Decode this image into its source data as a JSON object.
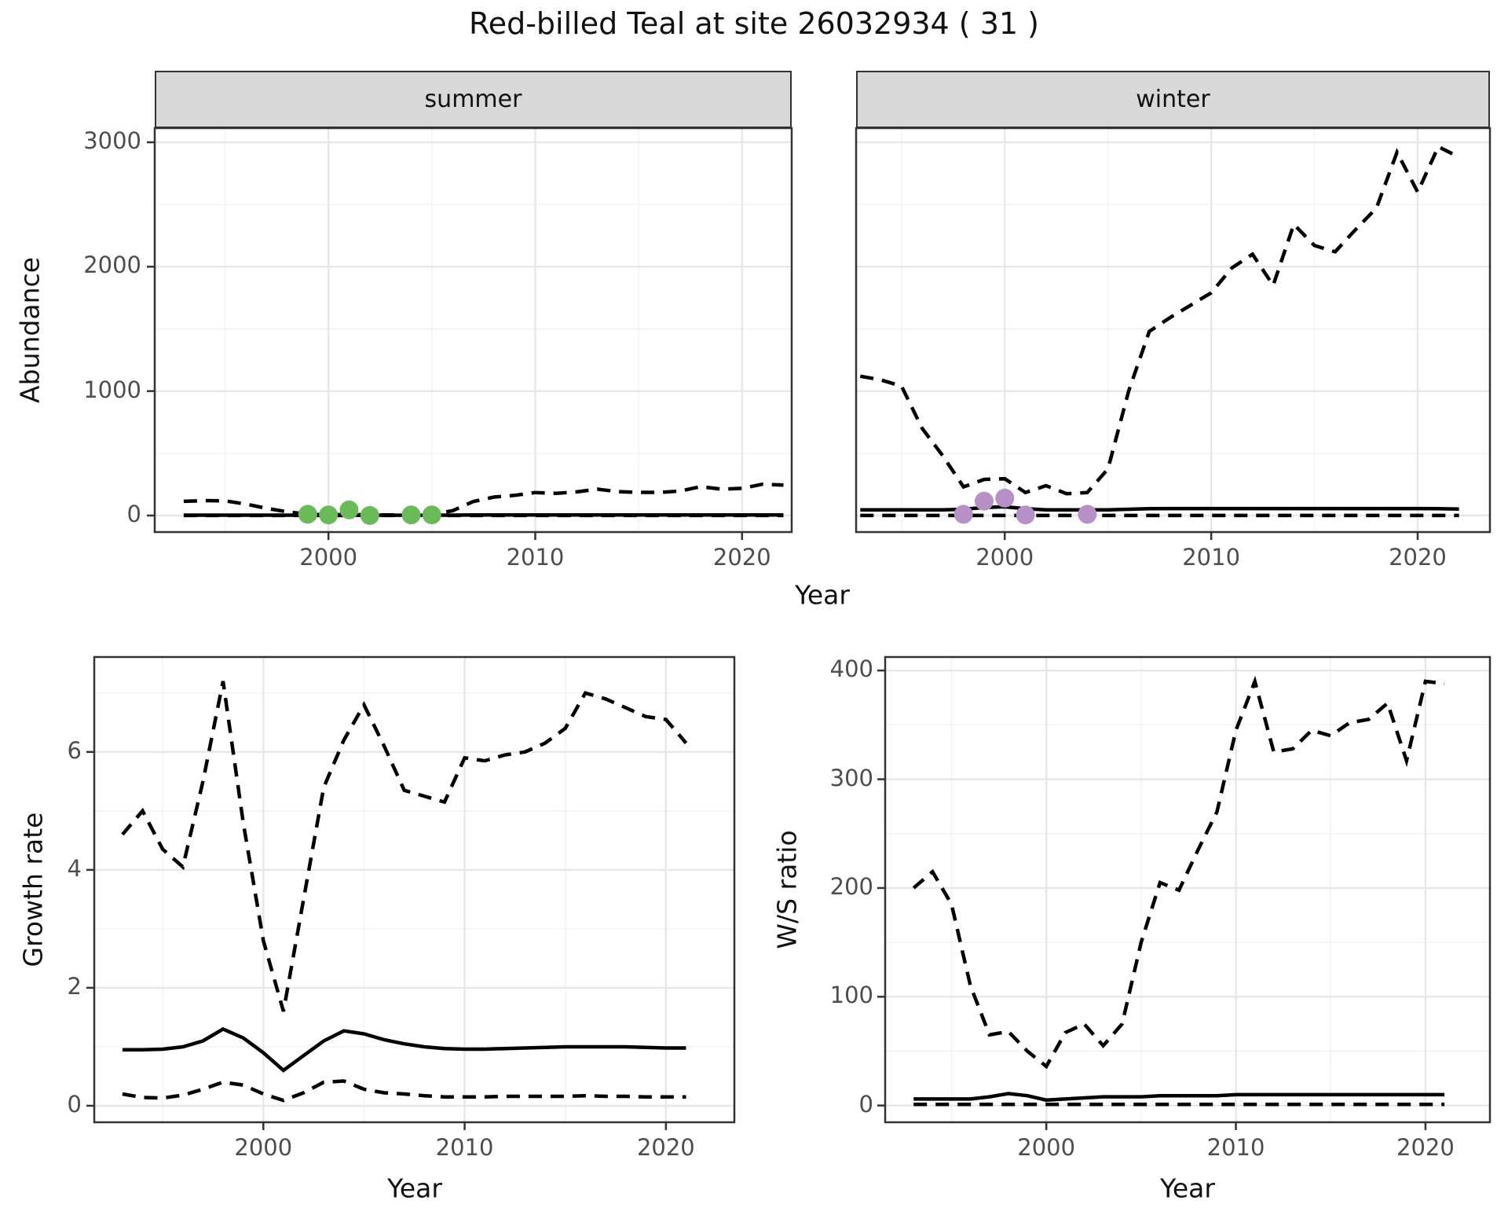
{
  "title": "Red-billed Teal at site 26032934 ( 31 )",
  "facet_labels": {
    "summer": "summer",
    "winter": "winter"
  },
  "axis_titles": {
    "abundance": "Abundance",
    "year_top": "Year",
    "growth": "Growth rate",
    "ws": "W/S ratio",
    "year_growth": "Year",
    "year_ws": "Year"
  },
  "colors": {
    "summer_dots": "#6aba5a",
    "winter_dots": "#b690c6",
    "line": "#000000",
    "grid_major": "#e7e7e7",
    "grid_minor": "#f2f2f2",
    "strip_bg": "#d9d9d9",
    "panel_border": "#333333",
    "tick_text": "#4d4d4d"
  },
  "chart_data": [
    {
      "id": "abundance-summer",
      "type": "line",
      "facet": "summer",
      "title": "Red-billed Teal at site 26032934 ( 31 )",
      "xlabel": "Year",
      "ylabel": "Abundance",
      "xlim": [
        1991.6,
        2022.4
      ],
      "ylim": [
        -133,
        3114
      ],
      "xticks": [
        2000,
        2010,
        2020
      ],
      "xminor": [
        1995,
        2005,
        2015
      ],
      "yticks": [
        0,
        1000,
        2000,
        3000
      ],
      "yminor": [
        500,
        1500,
        2500
      ],
      "x": [
        1993,
        1994,
        1995,
        1996,
        1997,
        1998,
        1999,
        2000,
        2001,
        2002,
        2003,
        2004,
        2005,
        2006,
        2007,
        2008,
        2009,
        2010,
        2011,
        2012,
        2013,
        2014,
        2015,
        2016,
        2017,
        2018,
        2019,
        2020,
        2021,
        2022
      ],
      "series": [
        {
          "name": "upper_ci",
          "style": "dashed",
          "values": [
            114,
            120,
            118,
            92,
            58,
            30,
            10,
            6,
            8,
            6,
            5,
            7,
            10,
            38,
            112,
            148,
            162,
            185,
            178,
            190,
            212,
            192,
            186,
            186,
            196,
            232,
            212,
            218,
            252,
            245
          ]
        },
        {
          "name": "lower_ci",
          "style": "dashed",
          "values": [
            0,
            0,
            0,
            0,
            0,
            0,
            0,
            0,
            0,
            0,
            0,
            0,
            0,
            0,
            0,
            0,
            0,
            0,
            0,
            0,
            0,
            0,
            0,
            0,
            0,
            0,
            0,
            0,
            0,
            0
          ]
        },
        {
          "name": "median",
          "style": "solid",
          "values": [
            3,
            3,
            3,
            3,
            3,
            3,
            2,
            2,
            2,
            2,
            2,
            2,
            2,
            3,
            4,
            5,
            5,
            5,
            5,
            5,
            5,
            5,
            5,
            5,
            5,
            5,
            5,
            5,
            5,
            5
          ]
        }
      ],
      "points": {
        "name": "observed_counts",
        "color_key": "summer_dots",
        "x": [
          1999,
          2000,
          2001,
          2002,
          2004,
          2005
        ],
        "y": [
          10,
          5,
          45,
          0,
          5,
          5
        ]
      }
    },
    {
      "id": "abundance-winter",
      "type": "line",
      "facet": "winter",
      "xlabel": "Year",
      "ylabel": "Abundance",
      "xlim": [
        1992.8,
        2023.5
      ],
      "ylim": [
        -133,
        3114
      ],
      "xticks": [
        2000,
        2010,
        2020
      ],
      "xminor": [
        1995,
        2005,
        2015
      ],
      "yticks": [
        0,
        1000,
        2000,
        3000
      ],
      "yminor": [
        500,
        1500,
        2500
      ],
      "x": [
        1993,
        1994,
        1995,
        1996,
        1997,
        1998,
        1999,
        2000,
        2001,
        2002,
        2003,
        2004,
        2005,
        2006,
        2007,
        2008,
        2009,
        2010,
        2011,
        2012,
        2013,
        2014,
        2015,
        2016,
        2017,
        2018,
        2019,
        2020,
        2021,
        2022
      ],
      "series": [
        {
          "name": "upper_ci",
          "style": "dashed",
          "values": [
            1120,
            1090,
            1040,
            700,
            480,
            230,
            290,
            295,
            185,
            240,
            175,
            185,
            375,
            1000,
            1480,
            1590,
            1690,
            1790,
            1990,
            2100,
            1850,
            2340,
            2170,
            2120,
            2300,
            2470,
            2920,
            2600,
            2965,
            2880
          ]
        },
        {
          "name": "lower_ci",
          "style": "dashed",
          "values": [
            0,
            0,
            0,
            0,
            0,
            0,
            0,
            0,
            0,
            0,
            0,
            0,
            0,
            0,
            0,
            0,
            0,
            0,
            0,
            0,
            0,
            0,
            0,
            0,
            0,
            0,
            0,
            0,
            0,
            0
          ]
        },
        {
          "name": "median",
          "style": "solid",
          "values": [
            45,
            45,
            45,
            45,
            46,
            50,
            65,
            70,
            55,
            46,
            45,
            45,
            45,
            50,
            55,
            56,
            56,
            56,
            56,
            56,
            56,
            56,
            56,
            56,
            56,
            56,
            56,
            56,
            55,
            52
          ]
        }
      ],
      "points": {
        "name": "observed_counts",
        "color_key": "winter_dots",
        "x": [
          1998,
          1999,
          2000,
          2001,
          2004
        ],
        "y": [
          10,
          115,
          140,
          5,
          10
        ]
      }
    },
    {
      "id": "growth-rate",
      "type": "line",
      "xlabel": "Year",
      "ylabel": "Growth rate",
      "xlim": [
        1991.6,
        2023.4
      ],
      "ylim": [
        -0.28,
        7.61
      ],
      "xticks": [
        2000,
        2010,
        2020
      ],
      "xminor": [
        1995,
        2005,
        2015
      ],
      "yticks": [
        0,
        2,
        4,
        6
      ],
      "yminor": [
        1,
        3,
        5,
        7
      ],
      "x": [
        1993,
        1994,
        1995,
        1996,
        1997,
        1998,
        1999,
        2000,
        2001,
        2002,
        2003,
        2004,
        2005,
        2006,
        2007,
        2008,
        2009,
        2010,
        2011,
        2012,
        2013,
        2014,
        2015,
        2016,
        2017,
        2018,
        2019,
        2020,
        2021
      ],
      "series": [
        {
          "name": "upper_ci",
          "style": "dashed",
          "values": [
            4.6,
            5.0,
            4.35,
            4.05,
            5.5,
            7.2,
            4.8,
            2.8,
            1.6,
            3.5,
            5.4,
            6.2,
            6.8,
            6.1,
            5.35,
            5.25,
            5.15,
            5.9,
            5.85,
            5.95,
            6.0,
            6.15,
            6.4,
            7.0,
            6.9,
            6.75,
            6.6,
            6.55,
            6.15
          ]
        },
        {
          "name": "lower_ci",
          "style": "dashed",
          "values": [
            0.2,
            0.14,
            0.13,
            0.18,
            0.28,
            0.4,
            0.35,
            0.2,
            0.09,
            0.22,
            0.4,
            0.42,
            0.28,
            0.22,
            0.2,
            0.17,
            0.15,
            0.15,
            0.15,
            0.16,
            0.16,
            0.16,
            0.16,
            0.17,
            0.16,
            0.16,
            0.15,
            0.15,
            0.15
          ]
        },
        {
          "name": "median",
          "style": "solid",
          "values": [
            0.95,
            0.95,
            0.96,
            1.0,
            1.1,
            1.3,
            1.15,
            0.9,
            0.6,
            0.85,
            1.1,
            1.27,
            1.22,
            1.12,
            1.05,
            1.0,
            0.97,
            0.96,
            0.96,
            0.97,
            0.98,
            0.99,
            1.0,
            1.0,
            1.0,
            1.0,
            0.99,
            0.98,
            0.98
          ]
        }
      ]
    },
    {
      "id": "ws-ratio",
      "type": "line",
      "xlabel": "Year",
      "ylabel": "W/S ratio",
      "xlim": [
        1991.5,
        2023.4
      ],
      "ylim": [
        -15.4,
        412.4
      ],
      "xticks": [
        2000,
        2010,
        2020
      ],
      "xminor": [
        1995,
        2005,
        2015
      ],
      "yticks": [
        0,
        100,
        200,
        300,
        400
      ],
      "yminor": [
        50,
        150,
        250,
        350
      ],
      "x": [
        1993,
        1994,
        1995,
        1996,
        1997,
        1998,
        1999,
        2000,
        2001,
        2002,
        2003,
        2004,
        2005,
        2006,
        2007,
        2008,
        2009,
        2010,
        2011,
        2012,
        2013,
        2014,
        2015,
        2016,
        2017,
        2018,
        2019,
        2020,
        2021
      ],
      "series": [
        {
          "name": "upper_ci",
          "style": "dashed",
          "values": [
            200,
            215,
            185,
            110,
            65,
            68,
            50,
            36,
            67,
            75,
            55,
            75,
            150,
            205,
            198,
            235,
            270,
            345,
            390,
            325,
            328,
            345,
            340,
            352,
            355,
            370,
            317,
            390,
            388
          ]
        },
        {
          "name": "lower_ci",
          "style": "dashed",
          "values": [
            1,
            1,
            1,
            1,
            1,
            1,
            1,
            1,
            1,
            1,
            1,
            1,
            1,
            1,
            1,
            1,
            1,
            1,
            1,
            1,
            1,
            1,
            1,
            1,
            1,
            1,
            1,
            1,
            1
          ]
        },
        {
          "name": "median",
          "style": "solid",
          "values": [
            6,
            6,
            6,
            6,
            8,
            11,
            9,
            5,
            6,
            7,
            8,
            8,
            8,
            9,
            9,
            9,
            9,
            10,
            10,
            10,
            10,
            10,
            10,
            10,
            10,
            10,
            10,
            10,
            10
          ]
        }
      ]
    }
  ]
}
